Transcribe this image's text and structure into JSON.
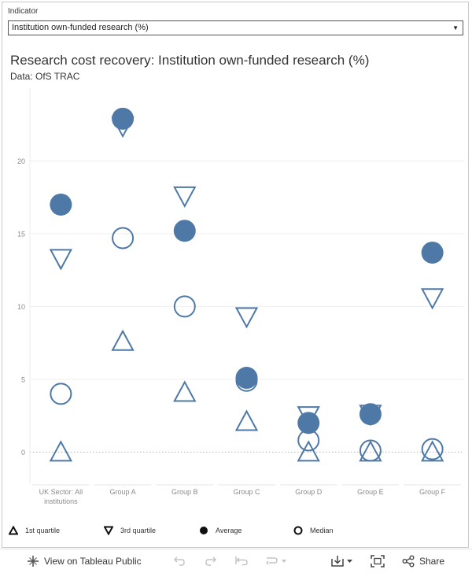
{
  "filter": {
    "label": "Indicator",
    "selected": "Institution own-funded research (%)"
  },
  "chart_data": {
    "type": "scatter",
    "title": "Research cost recovery: Institution own-funded research (%)",
    "subtitle": "Data: OfS TRAC",
    "categories": [
      "UK Sector: All institutions",
      "Group A",
      "Group B",
      "Group C",
      "Group D",
      "Group E",
      "Group F"
    ],
    "category_lines": [
      [
        "UK Sector: All",
        "institutions"
      ],
      [
        "Group A"
      ],
      [
        "Group B"
      ],
      [
        "Group C"
      ],
      [
        "Group D"
      ],
      [
        "Group E"
      ],
      [
        "Group F"
      ]
    ],
    "yticks": [
      0,
      5,
      10,
      15,
      20
    ],
    "ylim": [
      -2.2,
      25
    ],
    "grid": true,
    "series": [
      {
        "name": "1st quartile",
        "marker": "triangle-up",
        "values": [
          0,
          7.6,
          4.1,
          2.1,
          0,
          0,
          0
        ]
      },
      {
        "name": "3rd quartile",
        "marker": "triangle-down",
        "values": [
          13.3,
          22.4,
          17.6,
          9.3,
          2.5,
          2.6,
          10.6
        ]
      },
      {
        "name": "Average",
        "marker": "filled-circle",
        "values": [
          17.0,
          22.9,
          15.2,
          5.1,
          2.0,
          2.6,
          13.7
        ]
      },
      {
        "name": "Median",
        "marker": "open-circle",
        "values": [
          4.0,
          14.7,
          10.0,
          4.9,
          0.8,
          0.1,
          0.2
        ]
      }
    ],
    "colors": {
      "marker": "#4e79a7",
      "grid": "#efefef",
      "axis_text": "#8a8a8a"
    }
  },
  "toolbar": {
    "view_label": "View on Tableau Public",
    "share_label": "Share"
  }
}
